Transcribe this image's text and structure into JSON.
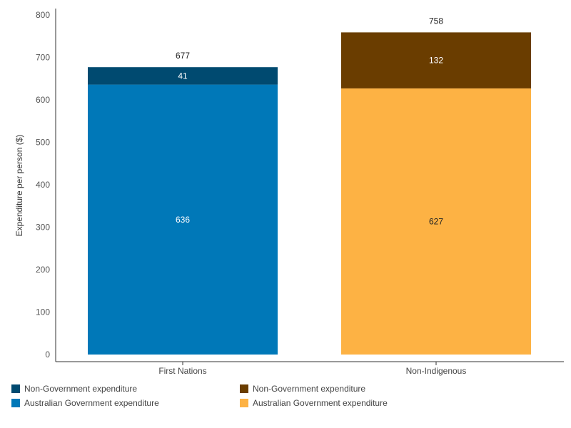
{
  "chart_data": {
    "type": "bar",
    "stacked": true,
    "ylabel": "Expenditure per person ($)",
    "ylim": [
      0,
      800
    ],
    "yticks": [
      0,
      100,
      200,
      300,
      400,
      500,
      600,
      700,
      800
    ],
    "categories": [
      "First Nations",
      "Non-Indigenous"
    ],
    "totals": [
      677,
      758
    ],
    "bars": [
      {
        "category": "First Nations",
        "segments": [
          {
            "name": "Australian Government expenditure",
            "value": 636,
            "color": "#0078b8",
            "label_color": "#ffffff"
          },
          {
            "name": "Non-Government expenditure",
            "value": 41,
            "color": "#004a70",
            "label_color": "#ffffff"
          }
        ]
      },
      {
        "category": "Non-Indigenous",
        "segments": [
          {
            "name": "Australian Government expenditure",
            "value": 627,
            "color": "#fdb244",
            "label_color": "#222222"
          },
          {
            "name": "Non-Government expenditure",
            "value": 132,
            "color": "#6a3d00",
            "label_color": "#ffffff"
          }
        ]
      }
    ],
    "legend": [
      [
        {
          "label": "Non-Government expenditure",
          "color": "#004a70"
        },
        {
          "label": "Australian Government expenditure",
          "color": "#0078b8"
        }
      ],
      [
        {
          "label": "Non-Government expenditure",
          "color": "#6a3d00"
        },
        {
          "label": "Australian Government expenditure",
          "color": "#fdb244"
        }
      ]
    ]
  }
}
